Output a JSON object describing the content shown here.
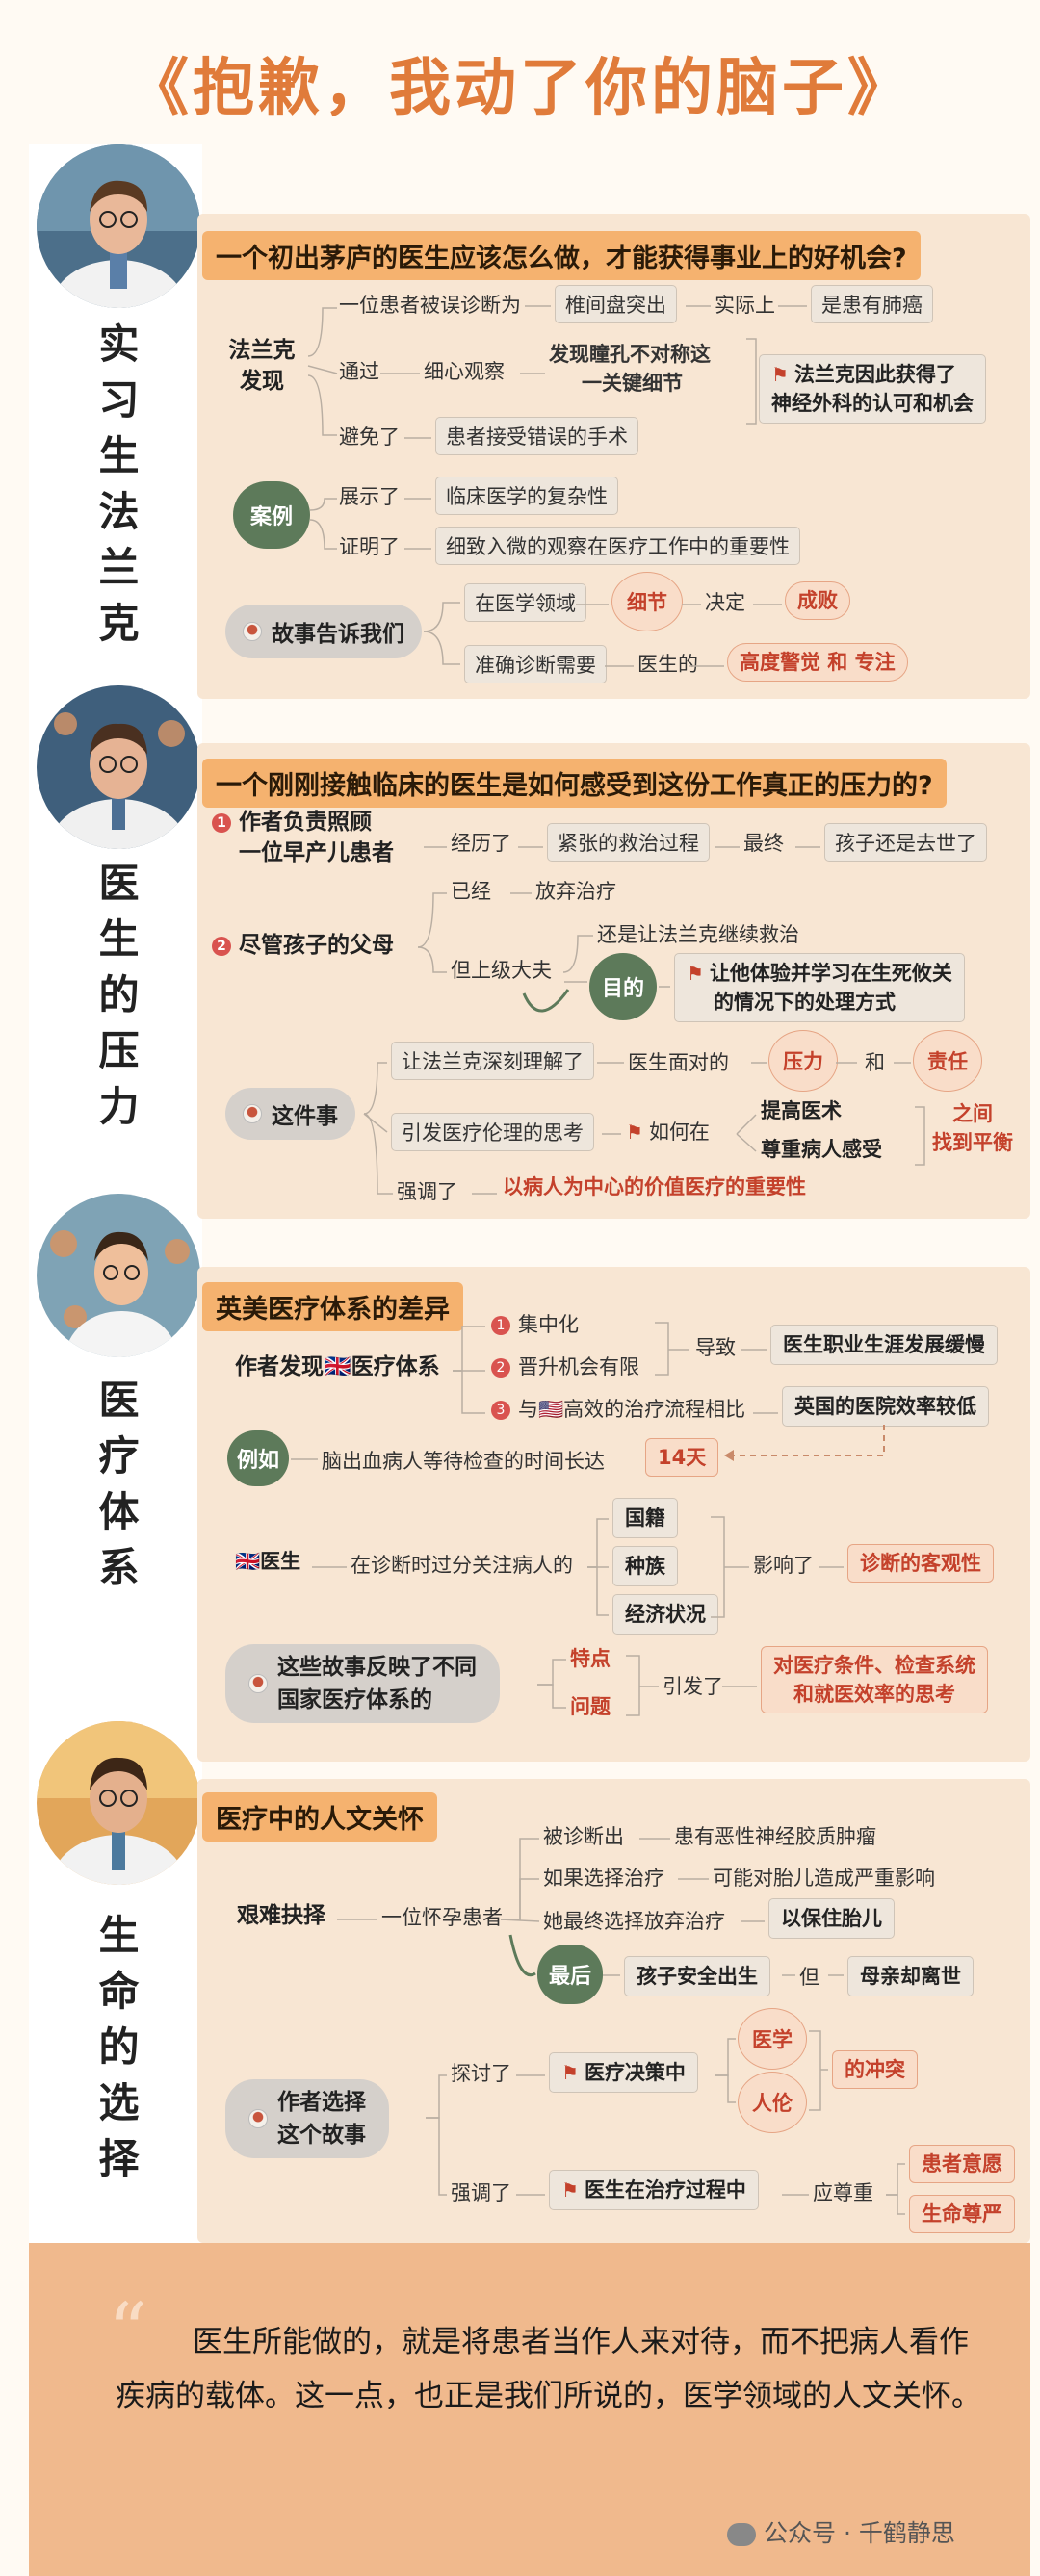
{
  "title": "《抱歉，我动了你的脑子》",
  "sections": [
    {
      "heading": "实习生法兰克",
      "question": "一个初出茅庐的医生应该怎么做，才能获得事业上的好机会?",
      "discover_label": "法兰克发现",
      "row1_a": "一位患者被误诊断为",
      "row1_b": "椎间盘突出",
      "row1_c": "实际上",
      "row1_d": "是患有肺癌",
      "row2_a": "通过",
      "row2_b": "细心观察",
      "row2_c1": "发现瞳孔不对称这",
      "row2_c2": "一关键细节",
      "result1": "法兰克因此获得了",
      "result2": "神经外科的认可和机会",
      "row3_a": "避免了",
      "row3_b": "患者接受错误的手术",
      "case_label": "案例",
      "case_a": "展示了",
      "case_b": "临床医学的复杂性",
      "case_c": "证明了",
      "case_d": "细致入微的观察在医疗工作中的重要性",
      "story": "故事告诉我们",
      "s1": "在医学领域",
      "s2": "细节",
      "s3": "决定",
      "s4": "成败",
      "s5": "准确诊断需要",
      "s6": "医生的",
      "s7": "高度警觉 和 专注"
    },
    {
      "heading": "医生的压力",
      "question": "一个刚刚接触临床的医生是如何感受到这份工作真正的压力的?",
      "p1_1": "作者负责照顾",
      "p1_2": "一位早产儿患者",
      "p1_a": "经历了",
      "p1_b": "紧张的救治过程",
      "p1_c": "最终",
      "p1_d": "孩子还是去世了",
      "p2": "尽管孩子的父母",
      "p2_a": "已经",
      "p2_b": "放弃治疗",
      "p2_c": "还是让法兰克继续救治",
      "p2_d": "但上级大夫",
      "purpose": "目的",
      "purpose_1": "让他体验并学习在生死攸关",
      "purpose_2": "的情况下的处理方式",
      "thing": "这件事",
      "t1": "让法兰克深刻理解了",
      "t2": "医生面对的",
      "t3": "压力",
      "t4": "和",
      "t5": "责任",
      "t6": "引发医疗伦理的思考",
      "t7": "如何在",
      "t8": "提高医术",
      "t9": "尊重病人感受",
      "t10_1": "之间",
      "t10_2": "找到平衡",
      "t11": "强调了",
      "t12": "以病人为中心的价值医疗的重要性"
    },
    {
      "heading": "医疗体系",
      "question": "英美医疗体系的差异",
      "found": "作者发现🇬🇧医疗体系",
      "f1": "集中化",
      "f2": "晋升机会有限",
      "f3": "与🇺🇸高效的治疗流程相比",
      "lead": "导致",
      "r1": "医生职业生涯发展缓慢",
      "r2": "英国的医院效率较低",
      "eg": "例如",
      "eg_text": "脑出血病人等待检查的时间长达",
      "eg_days": "14天",
      "doc": "🇬🇧医生",
      "doc_text": "在诊断时过分关注病人的",
      "d1": "国籍",
      "d2": "种族",
      "d3": "经济状况",
      "affect": "影响了",
      "affect_r": "诊断的客观性",
      "sum_1": "这些故事反映了不同",
      "sum_2": "国家医疗体系的",
      "feat": "特点",
      "prob": "问题",
      "trig": "引发了",
      "trig_1": "对医疗条件、检查系统",
      "trig_2": "和就医效率的思考"
    },
    {
      "heading": "生命的选择",
      "question": "医疗中的人文关怀",
      "hard": "艰难抉择",
      "patient": "一位怀孕患者",
      "h1_a": "被诊断出",
      "h1_b": "患有恶性神经胶质肿瘤",
      "h2_a": "如果选择治疗",
      "h2_b": "可能对胎儿造成严重影响",
      "h3_a": "她最终选择放弃治疗",
      "h3_b": "以保住胎儿",
      "last": "最后",
      "l1": "孩子安全出生",
      "l2": "但",
      "l3": "母亲却离世",
      "why_1": "作者选择",
      "why_2": "这个故事",
      "e1": "探讨了",
      "e2": "医疗决策中",
      "e3": "医学",
      "e4": "人伦",
      "e5": "的冲突",
      "e6": "强调了",
      "e7": "医生在治疗过程中",
      "e8": "应尊重",
      "e9": "患者意愿",
      "e10": "生命尊严"
    }
  ],
  "quote": "医生所能做的，就是将患者当作人来对待，而不把病人看作疾病的载体。这一点，也正是我们所说的，医学领域的人文关怀。",
  "footer": "公众号 · 千鹤静思"
}
